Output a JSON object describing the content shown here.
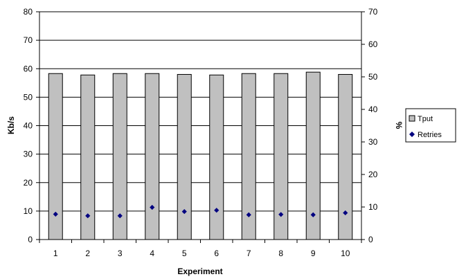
{
  "chart_data": {
    "type": "bar",
    "title": "",
    "xlabel": "Experiment",
    "ylabel": "Kb/s",
    "y2label": "%",
    "categories": [
      "1",
      "2",
      "3",
      "4",
      "5",
      "6",
      "7",
      "8",
      "9",
      "10"
    ],
    "ylim": [
      0,
      80
    ],
    "y2lim": [
      0,
      70
    ],
    "yticks": [
      "0",
      "10",
      "20",
      "30",
      "40",
      "50",
      "60",
      "70",
      "80"
    ],
    "y2ticks": [
      "0",
      "10",
      "20",
      "30",
      "40",
      "50",
      "60",
      "70"
    ],
    "grid": true,
    "legend_position": "right",
    "series": [
      {
        "name": "Tput",
        "type": "bar",
        "axis": "left",
        "color": "#c0c0c0",
        "values": [
          58.3,
          57.8,
          58.3,
          58.3,
          58.0,
          57.8,
          58.3,
          58.3,
          58.8,
          58.0
        ]
      },
      {
        "name": "Retries",
        "type": "scatter",
        "axis": "right",
        "color": "#000080",
        "values": [
          7.8,
          7.3,
          7.3,
          9.9,
          8.6,
          9.0,
          7.6,
          7.7,
          7.6,
          8.2
        ]
      }
    ]
  }
}
